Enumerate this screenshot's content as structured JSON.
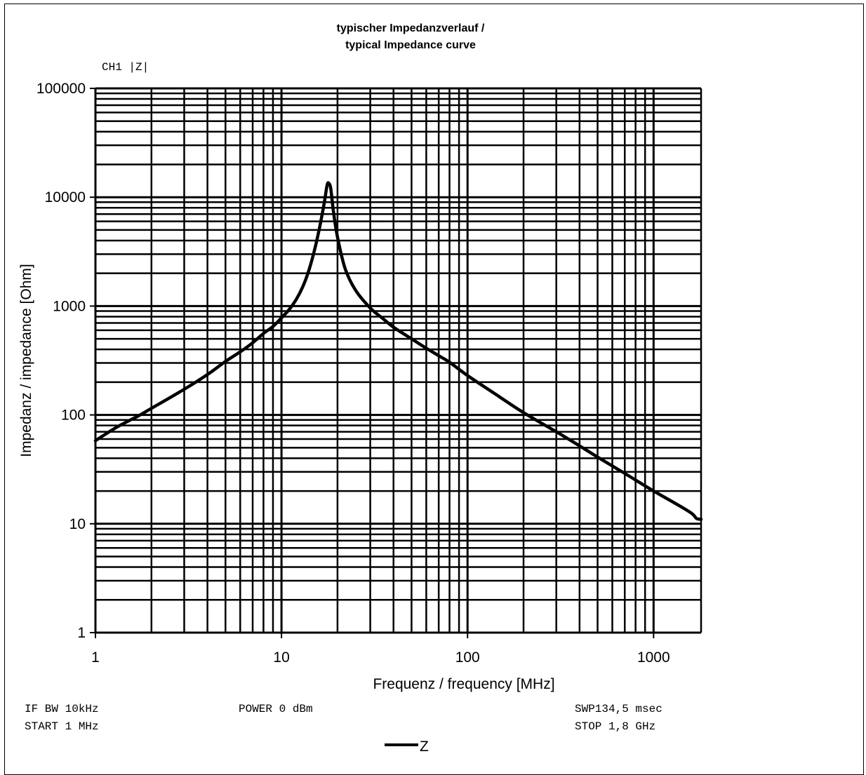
{
  "chart_data": {
    "type": "line",
    "title": "typischer Impedanzverlauf /",
    "subtitle": "typical Impedance curve",
    "xlabel": "Frequenz / frequency [MHz]",
    "ylabel": "Impedanz / impedance [Ohm]",
    "x_scale": "log",
    "y_scale": "log",
    "xlim": [
      1,
      1800
    ],
    "ylim": [
      1,
      100000
    ],
    "x_tick_labels": [
      "1",
      "10",
      "100",
      "1000"
    ],
    "y_tick_labels": [
      "1",
      "10",
      "100",
      "1000",
      "10000",
      "100000"
    ],
    "grid": true,
    "legend_position": "bottom-center",
    "series": [
      {
        "name": "Z",
        "color": "#000000",
        "x": [
          1,
          1.3,
          1.7,
          2,
          3,
          4,
          5,
          6,
          7,
          8,
          9,
          10,
          11,
          12,
          13,
          14,
          15,
          16,
          17,
          17.6,
          18,
          18.4,
          19,
          20,
          22,
          25,
          30,
          35,
          40,
          50,
          60,
          70,
          80,
          100,
          150,
          200,
          300,
          400,
          500,
          700,
          1000,
          1300,
          1600,
          1700,
          1800
        ],
        "y": [
          58,
          77,
          98,
          115,
          172,
          235,
          310,
          380,
          460,
          560,
          650,
          780,
          930,
          1150,
          1500,
          2100,
          3200,
          5200,
          9000,
          13000,
          13400,
          12000,
          7500,
          4300,
          2200,
          1400,
          960,
          770,
          640,
          500,
          410,
          350,
          305,
          230,
          145,
          105,
          70,
          52,
          41,
          29,
          20,
          15.5,
          12.5,
          11.2,
          11
        ]
      }
    ]
  },
  "header": {
    "channel_label": "CH1 |Z|"
  },
  "footer": {
    "if_bw": "IF BW 10kHz",
    "start": "START 1 MHz",
    "power": "POWER 0 dBm",
    "sweep": "SWP134,5 msec",
    "stop": "STOP 1,8 GHz"
  }
}
